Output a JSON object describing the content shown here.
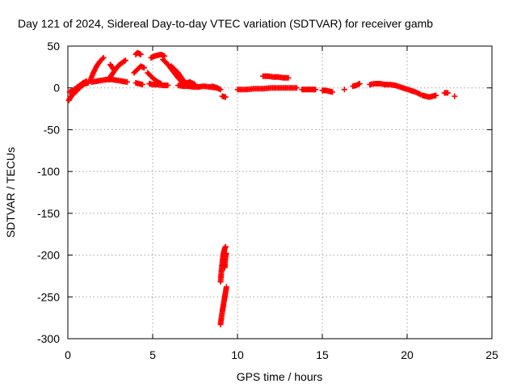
{
  "chart_data": {
    "type": "scatter",
    "title": "Day 121 of 2024, Sidereal Day-to-day VTEC variation (SDTVAR) for receiver gamb",
    "xlabel": "GPS time / hours",
    "ylabel": "SDTVAR / TECUs",
    "xlim": [
      0,
      25
    ],
    "ylim": [
      -300,
      50
    ],
    "x_ticks": [
      0,
      5,
      10,
      15,
      20,
      25
    ],
    "x_tick_labels": [
      "0",
      "5",
      "10",
      "15",
      "20",
      "25"
    ],
    "y_ticks": [
      50,
      0,
      -50,
      -100,
      -150,
      -200,
      -250,
      -300
    ],
    "y_tick_labels": [
      "50",
      "0",
      "-50",
      "-100",
      "-150",
      "-200",
      "-250",
      "-300"
    ],
    "grid": true,
    "marker": "+",
    "color": "#ff0000",
    "segments": [
      {
        "x": [
          0.05,
          0.2,
          0.4,
          0.6,
          0.8,
          1.0,
          1.2
        ],
        "y": [
          -15,
          -10,
          -6,
          -2,
          2,
          5,
          6
        ]
      },
      {
        "x": [
          0.1,
          0.3,
          0.5,
          0.7,
          0.9,
          1.1
        ],
        "y": [
          -5,
          -3,
          0,
          3,
          6,
          8
        ]
      },
      {
        "x": [
          1.3,
          1.5,
          1.7,
          1.9,
          2.1
        ],
        "y": [
          8,
          18,
          26,
          32,
          36
        ]
      },
      {
        "x": [
          1.4,
          1.7,
          2.0,
          2.3,
          2.6,
          2.9,
          3.2,
          3.5
        ],
        "y": [
          7,
          8,
          9,
          10,
          10,
          9,
          8,
          7
        ]
      },
      {
        "x": [
          2.4,
          2.6,
          2.8,
          3.0,
          3.2,
          3.4
        ],
        "y": [
          10,
          16,
          22,
          27,
          30,
          33
        ]
      },
      {
        "x": [
          2.5,
          2.6,
          2.7
        ],
        "y": [
          28,
          25,
          22
        ]
      },
      {
        "x": [
          4.0,
          4.1,
          4.2,
          4.3
        ],
        "y": [
          40,
          42,
          41,
          40
        ]
      },
      {
        "x": [
          3.9,
          4.1,
          4.3,
          4.5
        ],
        "y": [
          18,
          22,
          26,
          24
        ]
      },
      {
        "x": [
          4.0,
          4.2,
          4.4
        ],
        "y": [
          6,
          5,
          4
        ]
      },
      {
        "x": [
          4.9,
          5.1,
          5.3,
          5.5,
          5.7
        ],
        "y": [
          36,
          38,
          39,
          40,
          38
        ]
      },
      {
        "x": [
          4.7,
          4.9,
          5.1,
          5.3,
          5.5
        ],
        "y": [
          18,
          14,
          10,
          7,
          5
        ]
      },
      {
        "x": [
          4.8,
          5.0,
          5.3,
          5.6,
          5.9
        ],
        "y": [
          5,
          4,
          4,
          3,
          3
        ]
      },
      {
        "x": [
          5.6,
          5.9,
          6.2,
          6.5,
          6.8
        ],
        "y": [
          34,
          28,
          20,
          12,
          5
        ]
      },
      {
        "x": [
          6.1,
          6.3,
          6.5,
          6.7,
          6.9,
          7.1
        ],
        "y": [
          26,
          22,
          18,
          12,
          6,
          2
        ]
      },
      {
        "x": [
          6.5,
          6.8,
          7.1,
          7.4,
          7.7,
          8.0,
          8.4,
          8.8
        ],
        "y": [
          3,
          2,
          2,
          1,
          1,
          2,
          1,
          0
        ]
      },
      {
        "x": [
          6.8,
          7.0,
          7.2,
          7.5
        ],
        "y": [
          5,
          6,
          7,
          4
        ]
      },
      {
        "x": [
          8.5,
          8.8,
          9.0
        ],
        "y": [
          2,
          0,
          -2
        ]
      },
      {
        "x": [
          9.1,
          9.3
        ],
        "y": [
          -10,
          -11
        ]
      },
      {
        "x": [
          10.0,
          10.5,
          11.0,
          11.5,
          12.0,
          12.5,
          13.0,
          13.5
        ],
        "y": [
          -2,
          -2,
          -1,
          -1,
          0,
          0,
          0,
          0
        ]
      },
      {
        "x": [
          11.5,
          11.8,
          12.1,
          12.4,
          12.7,
          13.0
        ],
        "y": [
          14,
          14,
          13,
          13,
          12,
          12
        ]
      },
      {
        "x": [
          13.8,
          14.0,
          14.2,
          14.4,
          14.6
        ],
        "y": [
          -2,
          -2,
          -2,
          -2,
          -2
        ]
      },
      {
        "x": [
          15.0,
          15.2,
          15.4,
          15.6
        ],
        "y": [
          -3,
          -3,
          -4,
          -5
        ]
      },
      {
        "x": [
          16.3
        ],
        "y": [
          -2
        ]
      },
      {
        "x": [
          16.8,
          17.0,
          17.2
        ],
        "y": [
          2,
          3,
          5
        ]
      },
      {
        "x": [
          17.8,
          18.1,
          18.4,
          18.7,
          19.0,
          19.3,
          19.6,
          19.9,
          20.2,
          20.5,
          20.8
        ],
        "y": [
          4,
          5,
          5,
          4,
          4,
          3,
          1,
          -1,
          -3,
          -5,
          -8
        ]
      },
      {
        "x": [
          20.9,
          21.1,
          21.3,
          21.5,
          21.7
        ],
        "y": [
          -9,
          -10,
          -11,
          -10,
          -9
        ]
      },
      {
        "x": [
          22.2,
          22.4
        ],
        "y": [
          -6,
          -6
        ]
      },
      {
        "x": [
          22.8
        ],
        "y": [
          -10
        ]
      },
      {
        "x": [
          9.0,
          9.05,
          9.1,
          9.15,
          9.2,
          9.25,
          9.3
        ],
        "y": [
          -232,
          -220,
          -210,
          -200,
          -196,
          -192,
          -190
        ]
      },
      {
        "x": [
          9.25,
          9.28,
          9.31,
          9.34
        ],
        "y": [
          -215,
          -205,
          -200,
          -198
        ]
      },
      {
        "x": [
          9.0,
          9.05,
          9.1,
          9.15,
          9.2,
          9.25,
          9.3,
          9.35
        ],
        "y": [
          -283,
          -275,
          -268,
          -262,
          -256,
          -250,
          -244,
          -238
        ]
      }
    ]
  }
}
